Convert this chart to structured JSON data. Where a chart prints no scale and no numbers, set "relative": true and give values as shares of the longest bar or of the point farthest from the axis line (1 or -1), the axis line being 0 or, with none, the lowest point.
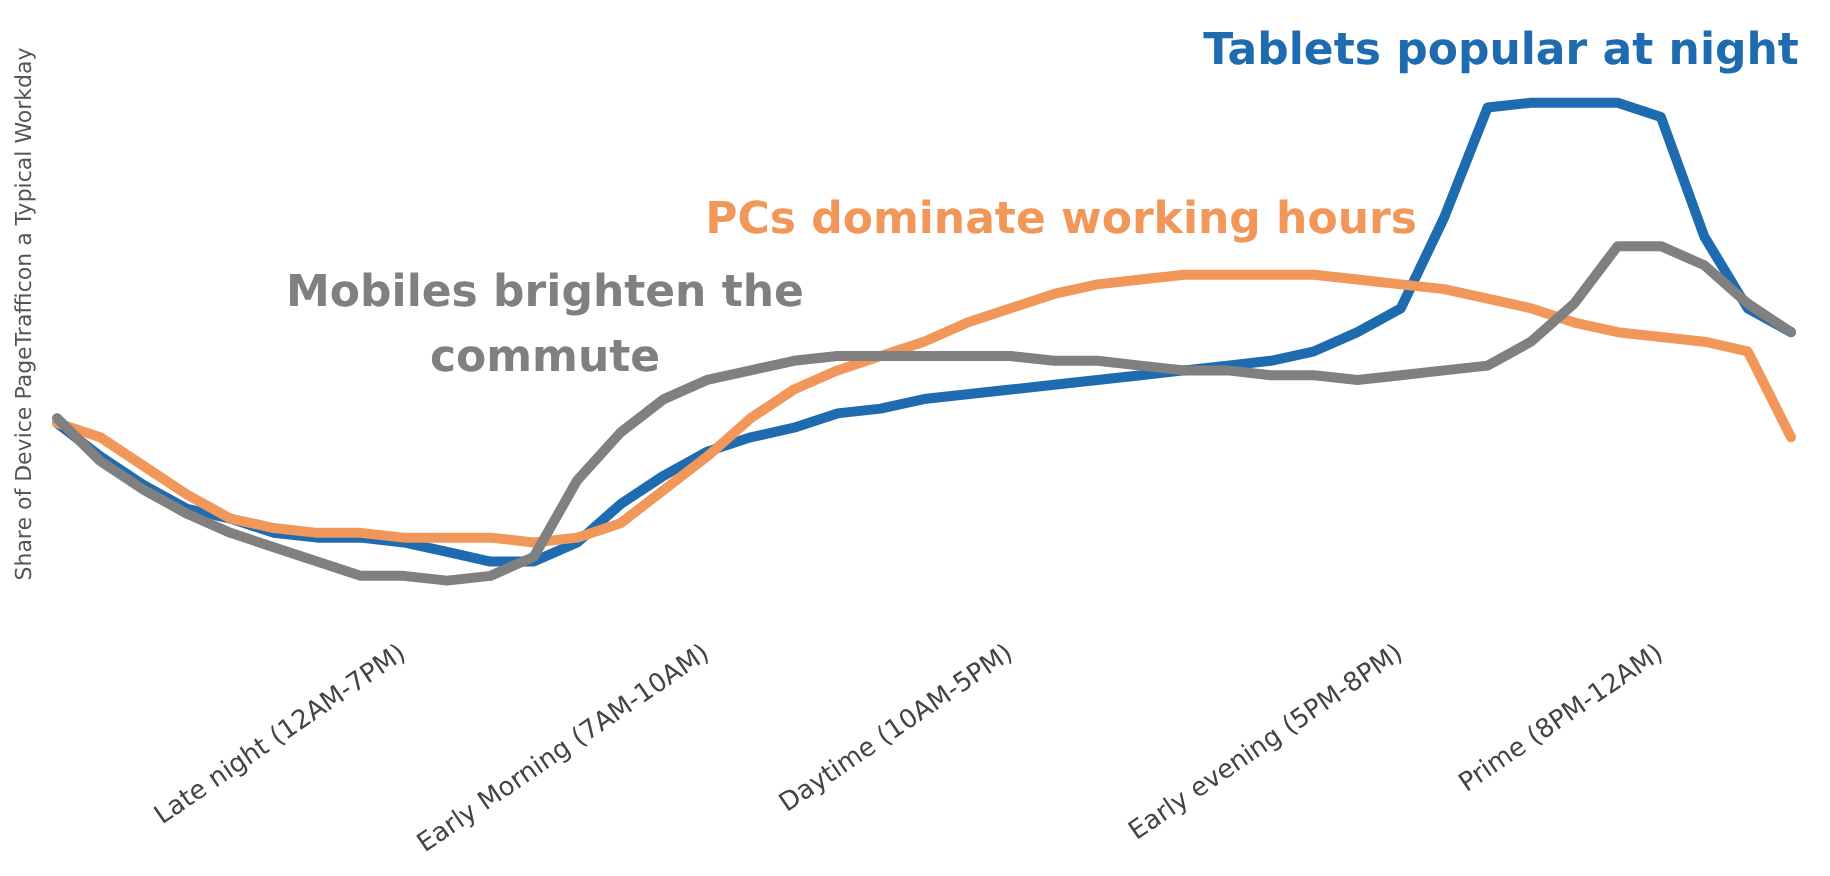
{
  "chart_data": {
    "type": "line",
    "relative": true,
    "ylabel": "Share of Device PageTrafficon a Typical Workday",
    "line_style": "solid",
    "marker": "none",
    "grid": false,
    "categories": [
      null,
      null,
      null,
      null,
      null,
      null,
      null,
      null,
      "Late night (12AM-7PM)",
      null,
      null,
      null,
      null,
      null,
      null,
      "Early Morning (7AM-10AM)",
      null,
      null,
      null,
      null,
      null,
      null,
      "Daytime (10AM-5PM)",
      null,
      null,
      null,
      null,
      null,
      null,
      null,
      null,
      "Early evening (5PM-8PM)",
      null,
      null,
      null,
      null,
      null,
      "Prime (8PM-12AM)",
      null,
      null,
      null
    ],
    "series": [
      {
        "color": "#1f6bb0",
        "values": [
          0.33,
          0.26,
          0.2,
          0.15,
          0.13,
          0.1,
          0.09,
          0.09,
          0.08,
          0.06,
          0.04,
          0.04,
          0.08,
          0.16,
          0.22,
          0.27,
          0.3,
          0.32,
          0.35,
          0.36,
          0.38,
          0.39,
          0.4,
          0.41,
          0.42,
          0.43,
          0.44,
          0.45,
          0.46,
          0.48,
          0.52,
          0.57,
          0.76,
          0.99,
          1.0,
          1.0,
          1.0,
          0.97,
          0.72,
          0.57,
          0.52
        ]
      },
      {
        "color": "#f2975a",
        "values": [
          0.33,
          0.3,
          0.24,
          0.18,
          0.13,
          0.11,
          0.1,
          0.1,
          0.09,
          0.09,
          0.09,
          0.08,
          0.09,
          0.12,
          0.19,
          0.26,
          0.34,
          0.4,
          0.44,
          0.47,
          0.5,
          0.54,
          0.57,
          0.6,
          0.62,
          0.63,
          0.64,
          0.64,
          0.64,
          0.64,
          0.63,
          0.62,
          0.61,
          0.59,
          0.57,
          0.54,
          0.52,
          0.51,
          0.5,
          0.48,
          0.3
        ]
      },
      {
        "color": "#808080",
        "values": [
          0.34,
          0.25,
          0.19,
          0.14,
          0.1,
          0.07,
          0.04,
          0.01,
          0.01,
          0,
          0.01,
          0.05,
          0.21,
          0.31,
          0.38,
          0.42,
          0.44,
          0.46,
          0.47,
          0.47,
          0.47,
          0.47,
          0.47,
          0.46,
          0.46,
          0.45,
          0.44,
          0.44,
          0.43,
          0.43,
          0.42,
          0.43,
          0.44,
          0.45,
          0.5,
          0.58,
          0.7,
          0.7,
          0.66,
          0.58,
          0.52
        ]
      }
    ],
    "annotations": [
      "Tablets popular at night",
      "PCs dominate working hours",
      "Mobiles brighten the\ncommute"
    ]
  }
}
